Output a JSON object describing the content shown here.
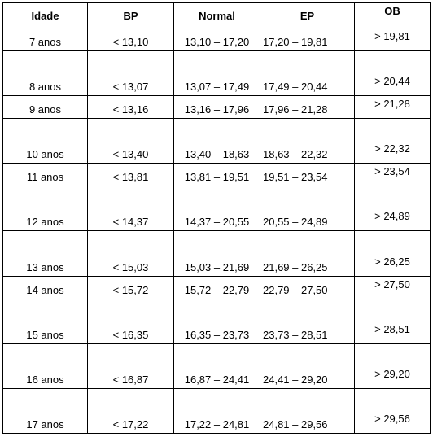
{
  "headers": [
    "Idade",
    "BP",
    "Normal",
    "EP",
    "OB"
  ],
  "rows": [
    [
      "7 anos",
      "< 13,10",
      "13,10 – 17,20",
      "17,20 – 19,81",
      "> 19,81"
    ],
    [
      "8 anos",
      "< 13,07",
      "13,07 – 17,49",
      "17,49 – 20,44",
      "> 20,44"
    ],
    [
      "9 anos",
      "< 13,16",
      "13,16 – 17,96",
      "17,96 – 21,28",
      "> 21,28"
    ],
    [
      "10 anos",
      "< 13,40",
      "13,40 – 18,63",
      "18,63 – 22,32",
      "> 22,32"
    ],
    [
      "11 anos",
      "< 13,81",
      "13,81 – 19,51",
      "19,51 – 23,54",
      "> 23,54"
    ],
    [
      "12 anos",
      "< 14,37",
      "14,37 – 20,55",
      "20,55 – 24,89",
      "> 24,89"
    ],
    [
      "13 anos",
      "< 15,03",
      "15,03 – 21,69",
      "21,69 – 26,25",
      "> 26,25"
    ],
    [
      "14 anos",
      "< 15,72",
      "15,72 – 22,79",
      "22,79 – 27,50",
      "> 27,50"
    ],
    [
      "15 anos",
      "< 16,35",
      "16,35 – 23,73",
      "23,73 – 28,51",
      "> 28,51"
    ],
    [
      "16 anos",
      "< 16,87",
      "16,87 – 24,41",
      "24,41 – 29,20",
      "> 29,20"
    ],
    [
      "17 anos",
      "< 17,22",
      "17,22 – 24,81",
      "24,81 – 29,56",
      "> 29,56"
    ]
  ]
}
